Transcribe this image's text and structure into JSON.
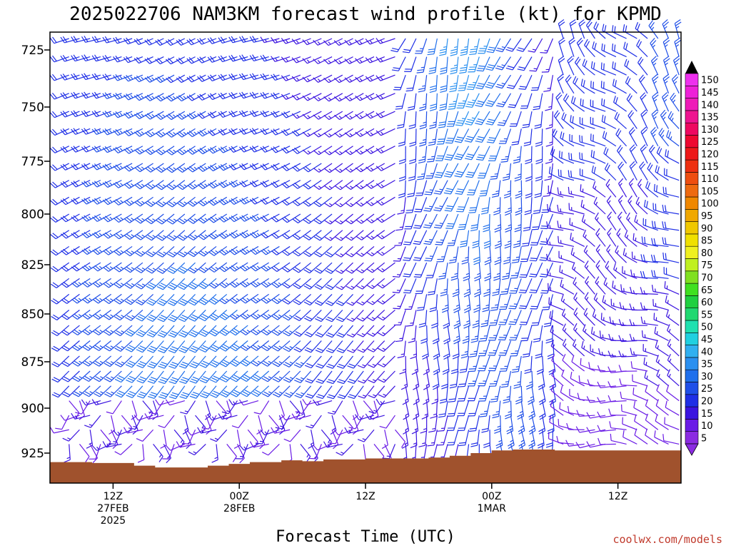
{
  "chart_data": {
    "type": "wind-barb-timeseries",
    "title": "2025022706 NAM3KM forecast wind profile (kt) for KPMD",
    "xlabel": "Forecast Time (UTC)",
    "units": "kt",
    "credit": "coolwx.com/models",
    "x_ticks": [
      {
        "hour": 6,
        "lines": [
          "12Z",
          "27FEB",
          "2025"
        ]
      },
      {
        "hour": 18,
        "lines": [
          "00Z",
          "28FEB"
        ]
      },
      {
        "hour": 30,
        "lines": [
          "12Z"
        ]
      },
      {
        "hour": 42,
        "lines": [
          "00Z",
          "1MAR"
        ]
      },
      {
        "hour": 54,
        "lines": [
          "12Z"
        ]
      }
    ],
    "xlim": [
      0,
      60
    ],
    "y_ticks": [
      725,
      750,
      775,
      800,
      825,
      850,
      875,
      900,
      925
    ],
    "ylim": [
      715,
      940
    ],
    "colorbar": {
      "labels": [
        5,
        10,
        15,
        20,
        25,
        30,
        35,
        40,
        45,
        50,
        55,
        60,
        65,
        70,
        75,
        80,
        85,
        90,
        95,
        100,
        105,
        110,
        115,
        120,
        125,
        130,
        135,
        140,
        145,
        150
      ],
      "colors": [
        "#8b2be2",
        "#6a1be6",
        "#3b14e0",
        "#1f2fe6",
        "#1f4fe8",
        "#2070ec",
        "#2a90f0",
        "#30b0f0",
        "#20d0e0",
        "#20e0b0",
        "#20d870",
        "#20d040",
        "#40e020",
        "#80e020",
        "#c0f020",
        "#f0f020",
        "#f0e000",
        "#f0c800",
        "#f0a800",
        "#f08800",
        "#ee6a10",
        "#ee4e10",
        "#ee3010",
        "#ee1818",
        "#ee0830",
        "#ee0860",
        "#ee1490",
        "#ee1ab8",
        "#ee20d8",
        "#ee30ee"
      ]
    },
    "terrain_pressure": [
      {
        "hour": 0,
        "p": 930
      },
      {
        "hour": 4,
        "p": 930.5
      },
      {
        "hour": 8,
        "p": 932
      },
      {
        "hour": 10,
        "p": 933
      },
      {
        "hour": 13,
        "p": 933
      },
      {
        "hour": 15,
        "p": 932
      },
      {
        "hour": 17,
        "p": 931
      },
      {
        "hour": 19,
        "p": 930
      },
      {
        "hour": 22,
        "p": 929
      },
      {
        "hour": 24,
        "p": 929.5
      },
      {
        "hour": 26,
        "p": 928.5
      },
      {
        "hour": 30,
        "p": 928
      },
      {
        "hour": 34,
        "p": 928
      },
      {
        "hour": 36,
        "p": 927.5
      },
      {
        "hour": 38,
        "p": 926.5
      },
      {
        "hour": 40,
        "p": 925
      },
      {
        "hour": 42,
        "p": 923.5
      },
      {
        "hour": 44,
        "p": 923
      },
      {
        "hour": 48,
        "p": 923.5
      },
      {
        "hour": 54,
        "p": 923.5
      },
      {
        "hour": 60,
        "p": 924.5
      }
    ],
    "barb_layout": {
      "hour_start": 1,
      "hour_end": 59,
      "hour_step": 1,
      "p_start": 720,
      "p_end": 925,
      "p_step": 8
    }
  }
}
